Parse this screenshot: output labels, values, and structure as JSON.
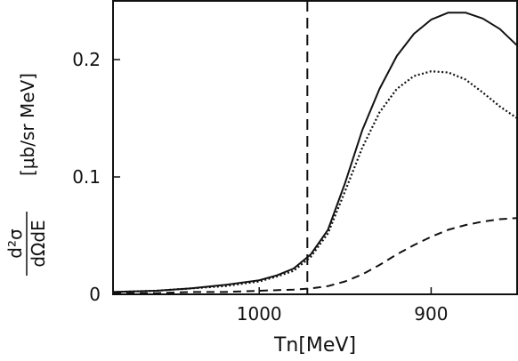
{
  "chart_data": {
    "type": "line",
    "title": "",
    "xlabel": "Tn[MeV]",
    "ylabel": {
      "fraction_numerator": "d²σ",
      "fraction_denominator": "dΩdE",
      "unit": "[μb/sr MeV]"
    },
    "x_axis": {
      "reversed": true,
      "xlim": [
        1085,
        850
      ],
      "ticks": [
        1000,
        900
      ],
      "tick_labels": [
        "1000",
        "900"
      ]
    },
    "y_axis": {
      "ylim": [
        0,
        0.25
      ],
      "ticks": [
        0,
        0.1,
        0.2
      ],
      "tick_labels": [
        "0",
        "0.1",
        "0.2"
      ]
    },
    "grid": false,
    "legend": "none",
    "reference_line": {
      "x": 972,
      "style": "dashed",
      "color": "#111111"
    },
    "series": [
      {
        "style": "solid",
        "color": "#111111",
        "points": [
          [
            1085,
            0.002
          ],
          [
            1060,
            0.003
          ],
          [
            1040,
            0.005
          ],
          [
            1020,
            0.008
          ],
          [
            1000,
            0.012
          ],
          [
            990,
            0.016
          ],
          [
            980,
            0.022
          ],
          [
            970,
            0.034
          ],
          [
            960,
            0.055
          ],
          [
            950,
            0.095
          ],
          [
            940,
            0.14
          ],
          [
            930,
            0.175
          ],
          [
            920,
            0.203
          ],
          [
            910,
            0.222
          ],
          [
            900,
            0.234
          ],
          [
            890,
            0.24
          ],
          [
            880,
            0.24
          ],
          [
            870,
            0.235
          ],
          [
            860,
            0.226
          ],
          [
            850,
            0.212
          ]
        ]
      },
      {
        "style": "dotted",
        "color": "#111111",
        "points": [
          [
            1085,
            0.002
          ],
          [
            1060,
            0.003
          ],
          [
            1040,
            0.005
          ],
          [
            1020,
            0.007
          ],
          [
            1000,
            0.011
          ],
          [
            990,
            0.015
          ],
          [
            980,
            0.02
          ],
          [
            970,
            0.032
          ],
          [
            960,
            0.052
          ],
          [
            950,
            0.088
          ],
          [
            940,
            0.125
          ],
          [
            930,
            0.155
          ],
          [
            920,
            0.175
          ],
          [
            910,
            0.186
          ],
          [
            900,
            0.19
          ],
          [
            890,
            0.189
          ],
          [
            880,
            0.183
          ],
          [
            870,
            0.172
          ],
          [
            860,
            0.16
          ],
          [
            850,
            0.15
          ]
        ]
      },
      {
        "style": "dashed",
        "color": "#111111",
        "points": [
          [
            1085,
            0.001
          ],
          [
            1060,
            0.001
          ],
          [
            1040,
            0.002
          ],
          [
            1020,
            0.002
          ],
          [
            1000,
            0.003
          ],
          [
            980,
            0.004
          ],
          [
            970,
            0.005
          ],
          [
            960,
            0.007
          ],
          [
            950,
            0.011
          ],
          [
            940,
            0.017
          ],
          [
            930,
            0.025
          ],
          [
            920,
            0.034
          ],
          [
            910,
            0.042
          ],
          [
            900,
            0.049
          ],
          [
            890,
            0.055
          ],
          [
            880,
            0.059
          ],
          [
            870,
            0.062
          ],
          [
            860,
            0.064
          ],
          [
            850,
            0.065
          ]
        ]
      }
    ]
  }
}
